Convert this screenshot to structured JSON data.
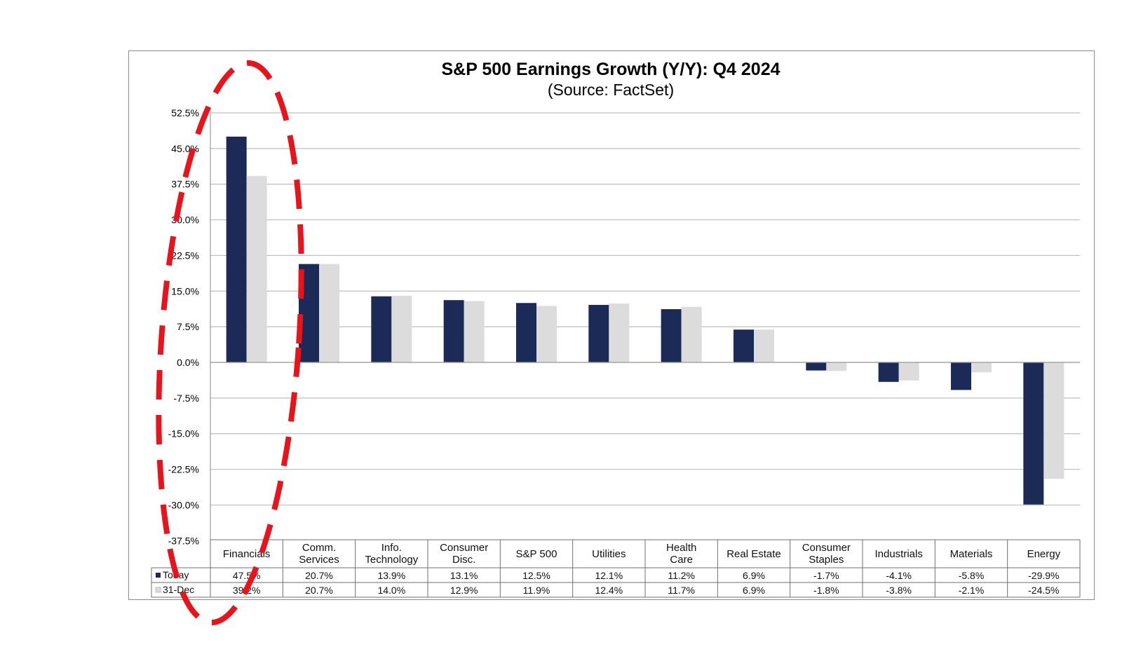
{
  "chart_data": {
    "type": "bar",
    "title": "S&P 500 Earnings Growth (Y/Y): Q4 2024",
    "subtitle": "(Source: FactSet)",
    "categories": [
      [
        "Financials"
      ],
      [
        "Comm.",
        "Services"
      ],
      [
        "Info.",
        "Technology"
      ],
      [
        "Consumer",
        "Disc."
      ],
      [
        "S&P 500"
      ],
      [
        "Utilities"
      ],
      [
        "Health",
        "Care"
      ],
      [
        "Real Estate"
      ],
      [
        "Consumer",
        "Staples"
      ],
      [
        "Industrials"
      ],
      [
        "Materials"
      ],
      [
        "Energy"
      ]
    ],
    "series": [
      {
        "name": "Today",
        "color": "#1b2a57",
        "values": [
          47.5,
          20.7,
          13.9,
          13.1,
          12.5,
          12.1,
          11.2,
          6.9,
          -1.7,
          -4.1,
          -5.8,
          -29.9
        ],
        "labels": [
          "47.5%",
          "20.7%",
          "13.9%",
          "13.1%",
          "12.5%",
          "12.1%",
          "11.2%",
          "6.9%",
          "-1.7%",
          "-4.1%",
          "-5.8%",
          "-29.9%"
        ]
      },
      {
        "name": "31-Dec",
        "color": "#dcdcdc",
        "values": [
          39.2,
          20.7,
          14.0,
          12.9,
          11.9,
          12.4,
          11.7,
          6.9,
          -1.8,
          -3.8,
          -2.1,
          -24.5
        ],
        "labels": [
          "39.2%",
          "20.7%",
          "14.0%",
          "12.9%",
          "11.9%",
          "12.4%",
          "11.7%",
          "6.9%",
          "-1.8%",
          "-3.8%",
          "-2.1%",
          "-24.5%"
        ]
      }
    ],
    "yticks": [
      52.5,
      45.0,
      37.5,
      30.0,
      22.5,
      15.0,
      7.5,
      0.0,
      -7.5,
      -15.0,
      -22.5,
      -30.0,
      -37.5
    ],
    "ytick_labels": [
      "52.5%",
      "45.0%",
      "37.5%",
      "30.0%",
      "22.5%",
      "15.0%",
      "7.5%",
      "0.0%",
      "-7.5%",
      "-15.0%",
      "-22.5%",
      "-30.0%",
      "-37.5%"
    ],
    "ylim": [
      -37.5,
      52.5
    ],
    "grid": true,
    "legend": "data-table-left"
  },
  "annotation": {
    "shape": "dashed-ellipse",
    "color": "#e8141b",
    "target": "Financials"
  }
}
